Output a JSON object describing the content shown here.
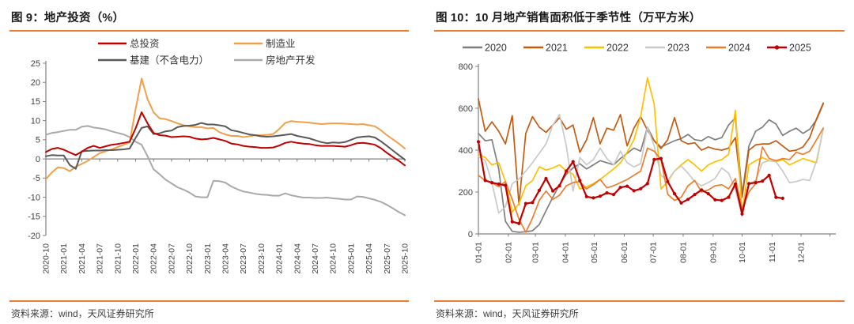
{
  "left_panel": {
    "title": "图 9：地产投资（%）",
    "source": "资料来源：wind，天风证券研究所"
  },
  "right_panel": {
    "title": "图 10：10 月地产销售面积低于季节性（万平方米）",
    "source": "资料来源：wind，天风证券研究所"
  },
  "accent_color": "#ED7D31",
  "chart_data": [
    {
      "type": "line",
      "title": "地产投资（%）",
      "xlabel": "",
      "ylabel": "",
      "ylim": [
        -20,
        25
      ],
      "yticks": [
        25,
        20,
        15,
        10,
        5,
        0,
        -5,
        -10,
        -15,
        -20
      ],
      "grid": false,
      "legend_position": "top-two-columns",
      "x": [
        "2020-10",
        "2020-11",
        "2020-12",
        "2021-01",
        "2021-02",
        "2021-03",
        "2021-04",
        "2021-05",
        "2021-06",
        "2021-07",
        "2021-08",
        "2021-09",
        "2021-10",
        "2021-11",
        "2021-12",
        "2022-01",
        "2022-02",
        "2022-03",
        "2022-04",
        "2022-05",
        "2022-06",
        "2022-07",
        "2022-08",
        "2022-09",
        "2022-10",
        "2022-11",
        "2022-12",
        "2023-01",
        "2023-02",
        "2023-03",
        "2023-04",
        "2023-05",
        "2023-06",
        "2023-07",
        "2023-08",
        "2023-09",
        "2023-10",
        "2023-11",
        "2023-12",
        "2024-01",
        "2024-02",
        "2024-03",
        "2024-04",
        "2024-05",
        "2024-06",
        "2024-07",
        "2024-08",
        "2024-09",
        "2024-10",
        "2024-11",
        "2024-12",
        "2025-01",
        "2025-02",
        "2025-03",
        "2025-04",
        "2025-05",
        "2025-06",
        "2025-07",
        "2025-08",
        "2025-09",
        "2025-10"
      ],
      "x_tick_labels": [
        "2020-10",
        "2021-01",
        "2021-04",
        "2021-07",
        "2021-10",
        "2022-01",
        "2022-04",
        "2022-07",
        "2022-10",
        "2023-01",
        "2023-04",
        "2023-07",
        "2023-10",
        "2024-01",
        "2024-04",
        "2024-07",
        "2024-10",
        "2025-01",
        "2025-04",
        "2025-07",
        "2025-10"
      ],
      "series": [
        {
          "name": "总投资",
          "color": "#C00000",
          "values": [
            1.8,
            2.6,
            2.9,
            2.4,
            1.7,
            1.0,
            1.9,
            2.9,
            3.4,
            2.9,
            3.3,
            3.7,
            3.9,
            4.2,
            4.5,
            8.0,
            12.2,
            9.3,
            6.8,
            6.2,
            6.1,
            5.7,
            5.8,
            5.9,
            5.8,
            5.3,
            5.1,
            5.2,
            5.5,
            5.1,
            4.7,
            4.0,
            3.8,
            3.4,
            3.2,
            3.1,
            2.9,
            2.9,
            3.0,
            3.5,
            4.2,
            4.5,
            4.2,
            4.0,
            3.9,
            3.6,
            3.4,
            3.4,
            3.4,
            3.3,
            3.2,
            3.6,
            4.1,
            4.2,
            4.0,
            3.7,
            2.8,
            1.6,
            0.5,
            -0.5,
            -1.7
          ]
        },
        {
          "name": "制造业",
          "color": "#F0A04B",
          "values": [
            -5.3,
            -3.5,
            -2.2,
            -2.4,
            -3.2,
            -2.0,
            -1.3,
            -0.5,
            0.5,
            1.5,
            2.0,
            2.5,
            3.1,
            3.7,
            4.3,
            13.0,
            21.0,
            15.6,
            12.2,
            10.6,
            10.4,
            9.9,
            9.3,
            8.8,
            8.5,
            8.3,
            8.3,
            8.0,
            8.1,
            7.0,
            6.4,
            6.0,
            6.0,
            5.7,
            5.9,
            6.2,
            6.2,
            6.3,
            6.5,
            7.8,
            9.4,
            9.9,
            9.7,
            9.6,
            9.5,
            9.3,
            9.1,
            9.2,
            9.3,
            9.3,
            9.2,
            9.1,
            9.0,
            9.1,
            8.8,
            8.5,
            7.5,
            6.2,
            5.1,
            4.0,
            2.7
          ]
        },
        {
          "name": "基建（不含电力）",
          "color": "#595959",
          "values": [
            0.7,
            1.0,
            0.9,
            0.9,
            -1.6,
            -2.6,
            2.0,
            2.1,
            2.2,
            2.2,
            2.3,
            2.3,
            2.4,
            2.5,
            2.7,
            5.5,
            8.1,
            8.5,
            6.5,
            6.7,
            7.2,
            7.4,
            8.3,
            8.6,
            8.7,
            8.9,
            9.4,
            9.0,
            9.0,
            8.8,
            8.5,
            7.5,
            7.2,
            6.8,
            6.4,
            6.2,
            5.9,
            5.8,
            5.9,
            6.1,
            6.3,
            6.5,
            6.0,
            5.7,
            5.4,
            4.9,
            4.4,
            4.1,
            4.3,
            4.2,
            4.4,
            5.0,
            5.6,
            5.8,
            5.9,
            5.6,
            4.6,
            3.4,
            2.2,
            1.0,
            -0.2
          ]
        },
        {
          "name": "房地产开发",
          "color": "#A9A9A9",
          "values": [
            6.3,
            6.8,
            7.0,
            7.3,
            7.6,
            7.6,
            8.4,
            8.6,
            8.2,
            8.0,
            7.7,
            7.2,
            6.8,
            6.4,
            5.7,
            4.5,
            3.7,
            0.7,
            -2.7,
            -4.0,
            -5.4,
            -6.4,
            -7.4,
            -8.0,
            -8.8,
            -9.8,
            -10.0,
            -10.0,
            -5.7,
            -5.8,
            -6.2,
            -7.2,
            -7.9,
            -8.5,
            -8.8,
            -9.1,
            -9.3,
            -9.4,
            -9.6,
            -9.6,
            -9.0,
            -9.5,
            -9.8,
            -10.1,
            -10.1,
            -10.2,
            -10.2,
            -10.1,
            -10.3,
            -10.4,
            -10.6,
            -10.6,
            -9.8,
            -9.9,
            -10.3,
            -10.7,
            -11.2,
            -12.0,
            -12.9,
            -13.9,
            -14.7
          ]
        }
      ]
    },
    {
      "type": "line",
      "title": "10 月地产销售面积低于季节性（万平方米）",
      "xlabel": "",
      "ylabel": "",
      "ylim": [
        0,
        800
      ],
      "yticks": [
        800,
        600,
        400,
        200,
        0
      ],
      "grid": false,
      "legend_position": "top-row",
      "x_unit": "weekly, Jan–Dec",
      "x_tick_labels": [
        "01-01",
        "02-01",
        "03-01",
        "04-01",
        "05-01",
        "06-01",
        "07-01",
        "08-01",
        "09-01",
        "10-01",
        "11-01",
        "12-01"
      ],
      "series": [
        {
          "name": "2020",
          "color": "#7F7F7F",
          "values": [
            480,
            445,
            450,
            310,
            60,
            12,
            8,
            10,
            15,
            45,
            110,
            175,
            235,
            285,
            315,
            335,
            310,
            330,
            350,
            340,
            330,
            360,
            385,
            410,
            395,
            510,
            445,
            415,
            430,
            445,
            455,
            475,
            450,
            445,
            465,
            450,
            460,
            520,
            555,
            190,
            420,
            490,
            510,
            545,
            525,
            470,
            490,
            505,
            480,
            500,
            545,
            620
          ]
        },
        {
          "name": "2021",
          "color": "#C55A11",
          "values": [
            645,
            490,
            535,
            490,
            430,
            565,
            140,
            480,
            560,
            510,
            485,
            520,
            555,
            500,
            520,
            390,
            450,
            555,
            430,
            505,
            495,
            570,
            420,
            505,
            560,
            495,
            445,
            408,
            450,
            555,
            445,
            430,
            435,
            400,
            415,
            405,
            400,
            410,
            460,
            175,
            400,
            425,
            430,
            430,
            445,
            420,
            395,
            400,
            415,
            460,
            550,
            625
          ]
        },
        {
          "name": "2022",
          "color": "#FFC000",
          "values": [
            380,
            365,
            330,
            340,
            250,
            105,
            145,
            230,
            255,
            320,
            305,
            315,
            330,
            300,
            285,
            215,
            225,
            240,
            260,
            285,
            310,
            340,
            390,
            450,
            560,
            745,
            620,
            215,
            250,
            300,
            330,
            355,
            330,
            300,
            330,
            345,
            355,
            380,
            590,
            100,
            330,
            350,
            365,
            350,
            345,
            355,
            330,
            345,
            360,
            350,
            340,
            505
          ]
        },
        {
          "name": "2023",
          "color": "#C9C9C9",
          "values": [
            370,
            350,
            245,
            100,
            130,
            240,
            262,
            300,
            340,
            385,
            430,
            520,
            570,
            420,
            205,
            365,
            330,
            355,
            410,
            360,
            330,
            395,
            340,
            320,
            335,
            510,
            420,
            280,
            255,
            300,
            325,
            290,
            250,
            230,
            245,
            265,
            315,
            290,
            210,
            85,
            240,
            255,
            340,
            350,
            345,
            300,
            245,
            250,
            260,
            255,
            350,
            500
          ]
        },
        {
          "name": "2024",
          "color": "#ED7D31",
          "values": [
            280,
            255,
            245,
            225,
            250,
            165,
            70,
            8,
            75,
            160,
            205,
            165,
            185,
            230,
            245,
            250,
            215,
            235,
            260,
            220,
            230,
            245,
            260,
            280,
            300,
            410,
            395,
            355,
            190,
            160,
            175,
            230,
            255,
            200,
            210,
            230,
            235,
            215,
            265,
            120,
            200,
            240,
            415,
            360,
            350,
            360,
            355,
            390,
            380,
            395,
            450,
            505
          ]
        },
        {
          "name": "2025",
          "color": "#C00000",
          "marker": true,
          "values": [
            440,
            255,
            245,
            238,
            232,
            58,
            50,
            145,
            150,
            208,
            265,
            205,
            230,
            300,
            345,
            255,
            178,
            172,
            180,
            196,
            188,
            222,
            228,
            206,
            216,
            240,
            355,
            360,
            250,
            192,
            148,
            165,
            188,
            210,
            192,
            163,
            160,
            175,
            238,
            95,
            240,
            245,
            252,
            280,
            175,
            170
          ]
        }
      ]
    }
  ]
}
